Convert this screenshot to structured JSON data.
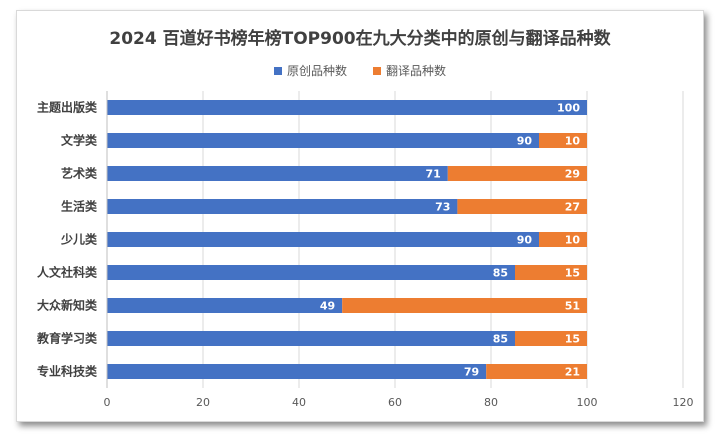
{
  "chart_data": {
    "type": "bar",
    "orientation": "horizontal",
    "stacked": true,
    "title": "2024 百道好书榜年榜TOP900在九大分类中的原创与翻译品种数",
    "categories": [
      "主题出版类",
      "文学类",
      "艺术类",
      "生活类",
      "少儿类",
      "人文社科类",
      "大众新知类",
      "教育学习类",
      "专业科技类"
    ],
    "series": [
      {
        "name": "原创品种数",
        "color": "#4472c4",
        "values": [
          100,
          90,
          71,
          73,
          90,
          85,
          49,
          85,
          79
        ]
      },
      {
        "name": "翻译品种数",
        "color": "#ed7d31",
        "values": [
          0,
          10,
          29,
          27,
          10,
          15,
          51,
          15,
          21
        ]
      }
    ],
    "xlim": [
      0,
      120
    ],
    "xticks": [
      "0",
      "20",
      "40",
      "60",
      "80",
      "100",
      "120"
    ],
    "grid": "vertical",
    "legend": "top-center",
    "data_labels": true
  }
}
